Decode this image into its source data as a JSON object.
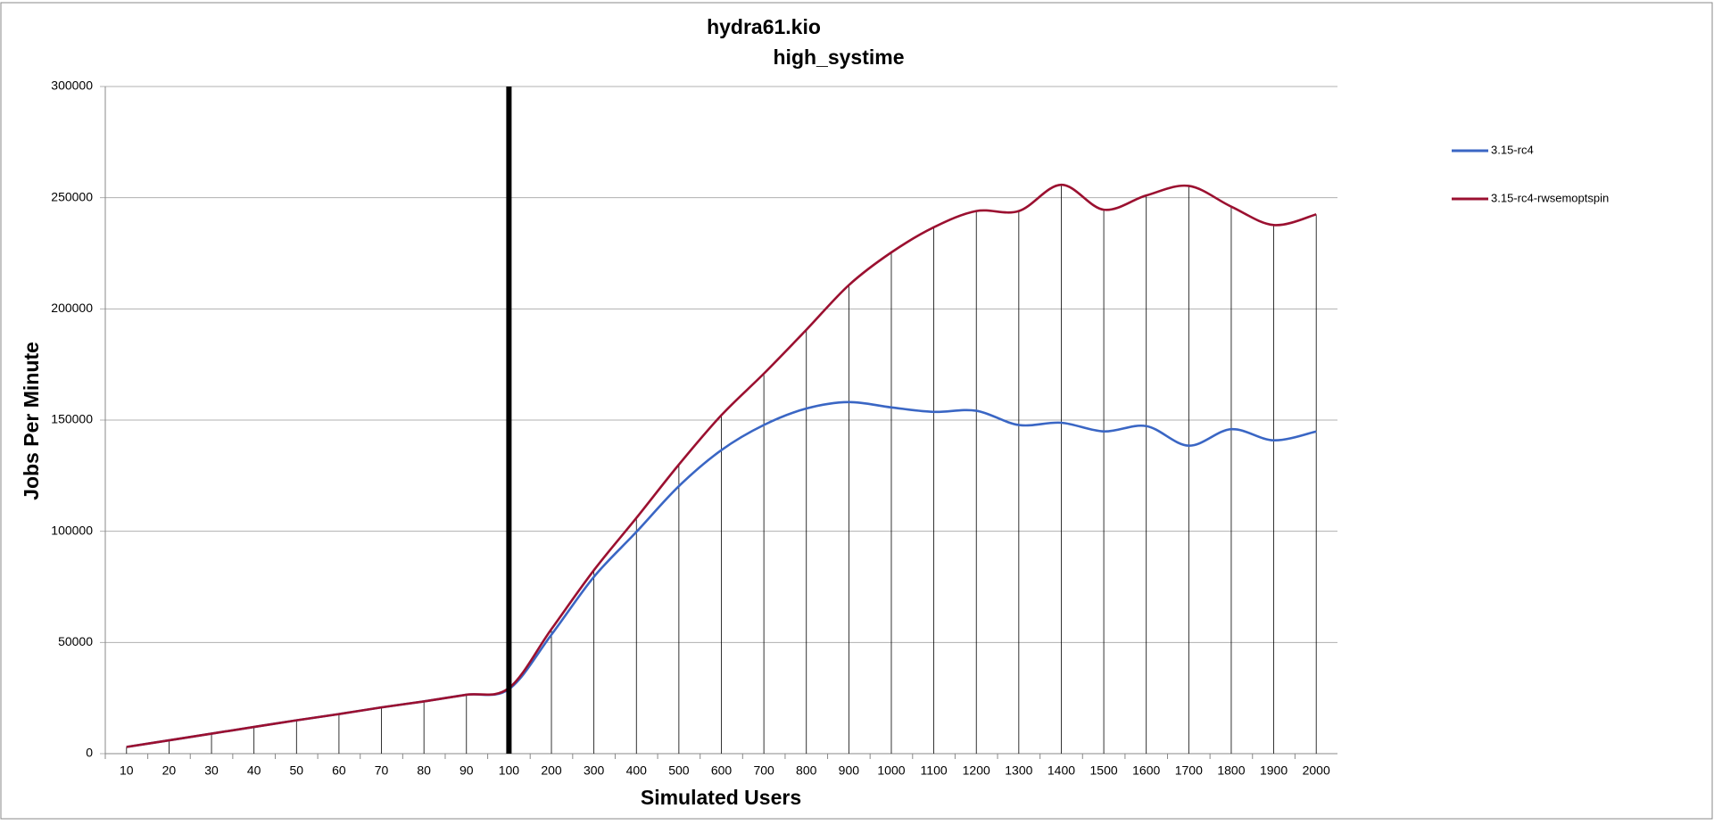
{
  "chart_data": {
    "type": "line",
    "title": "hydra61.kio",
    "subtitle": "high_systime",
    "x_label": "Simulated Users",
    "y_label": "Jobs Per Minute",
    "categories": [
      "10",
      "20",
      "30",
      "40",
      "50",
      "60",
      "70",
      "80",
      "90",
      "100",
      "200",
      "300",
      "400",
      "500",
      "600",
      "700",
      "800",
      "900",
      "1000",
      "1100",
      "1200",
      "1300",
      "1400",
      "1500",
      "1600",
      "1700",
      "1800",
      "1900",
      "2000"
    ],
    "series": [
      {
        "name": "3.15-rc4",
        "color": "#3a66c4",
        "values": [
          3000,
          6000,
          9000,
          12000,
          15000,
          17800,
          20800,
          23500,
          26500,
          29000,
          53500,
          79500,
          99700,
          120300,
          136500,
          147800,
          155200,
          158100,
          155700,
          153700,
          154200,
          147800,
          148800,
          144900,
          147300,
          138500,
          145900,
          140900,
          144900
        ]
      },
      {
        "name": "3.15-rc4-rwsemoptspin",
        "color": "#9b1030",
        "values": [
          3000,
          6000,
          9000,
          12000,
          15000,
          17800,
          20800,
          23500,
          26500,
          29500,
          56000,
          82500,
          106000,
          130000,
          152200,
          170900,
          190600,
          210700,
          225400,
          236700,
          244000,
          244000,
          255800,
          244600,
          251000,
          255300,
          246000,
          237700,
          242500
        ]
      }
    ],
    "ylim": [
      0,
      300000
    ],
    "yticks": [
      0,
      50000,
      100000,
      150000,
      200000,
      250000,
      300000
    ],
    "grid": true,
    "drop_lines": true,
    "reference_line": {
      "x": "100",
      "color": "#000000"
    },
    "legend": "right",
    "smooth": true
  }
}
